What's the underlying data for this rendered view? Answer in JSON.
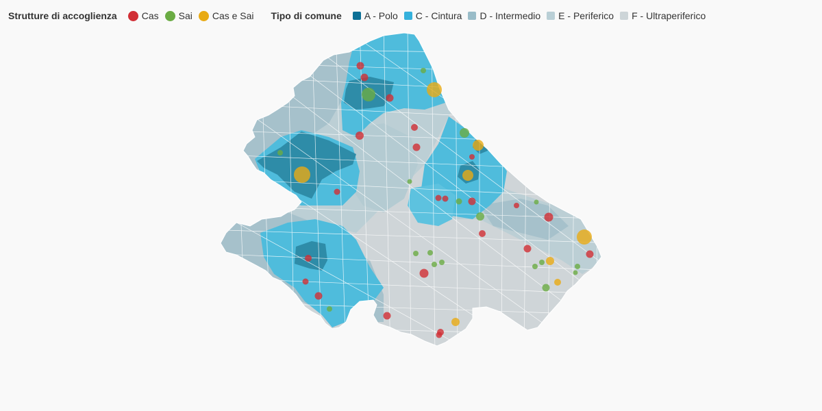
{
  "legend": {
    "structures_title": "Strutture di accoglienza",
    "structures": [
      {
        "label": "Cas",
        "color": "#d12e35"
      },
      {
        "label": "Sai",
        "color": "#6aab43"
      },
      {
        "label": "Cas e Sai",
        "color": "#e8aa14"
      }
    ],
    "comune_title": "Tipo di comune",
    "comune_types": [
      {
        "label": "A - Polo",
        "color": "#0d7096"
      },
      {
        "label": "C - Cintura",
        "color": "#35b1dc"
      },
      {
        "label": "D - Intermedio",
        "color": "#99bcc8"
      },
      {
        "label": "E - Periferico",
        "color": "#b9cfd6"
      },
      {
        "label": "F - Ultraperiferico",
        "color": "#cdd5d8"
      }
    ]
  },
  "map": {
    "region": "Abruzzo",
    "marker_opacity": 0.8,
    "region_colors": {
      "A": "#2e8ca8",
      "C": "#4fbcdc",
      "D": "#a6c1cb",
      "E": "#bccfd5",
      "F": "#cfd5d8"
    }
  }
}
